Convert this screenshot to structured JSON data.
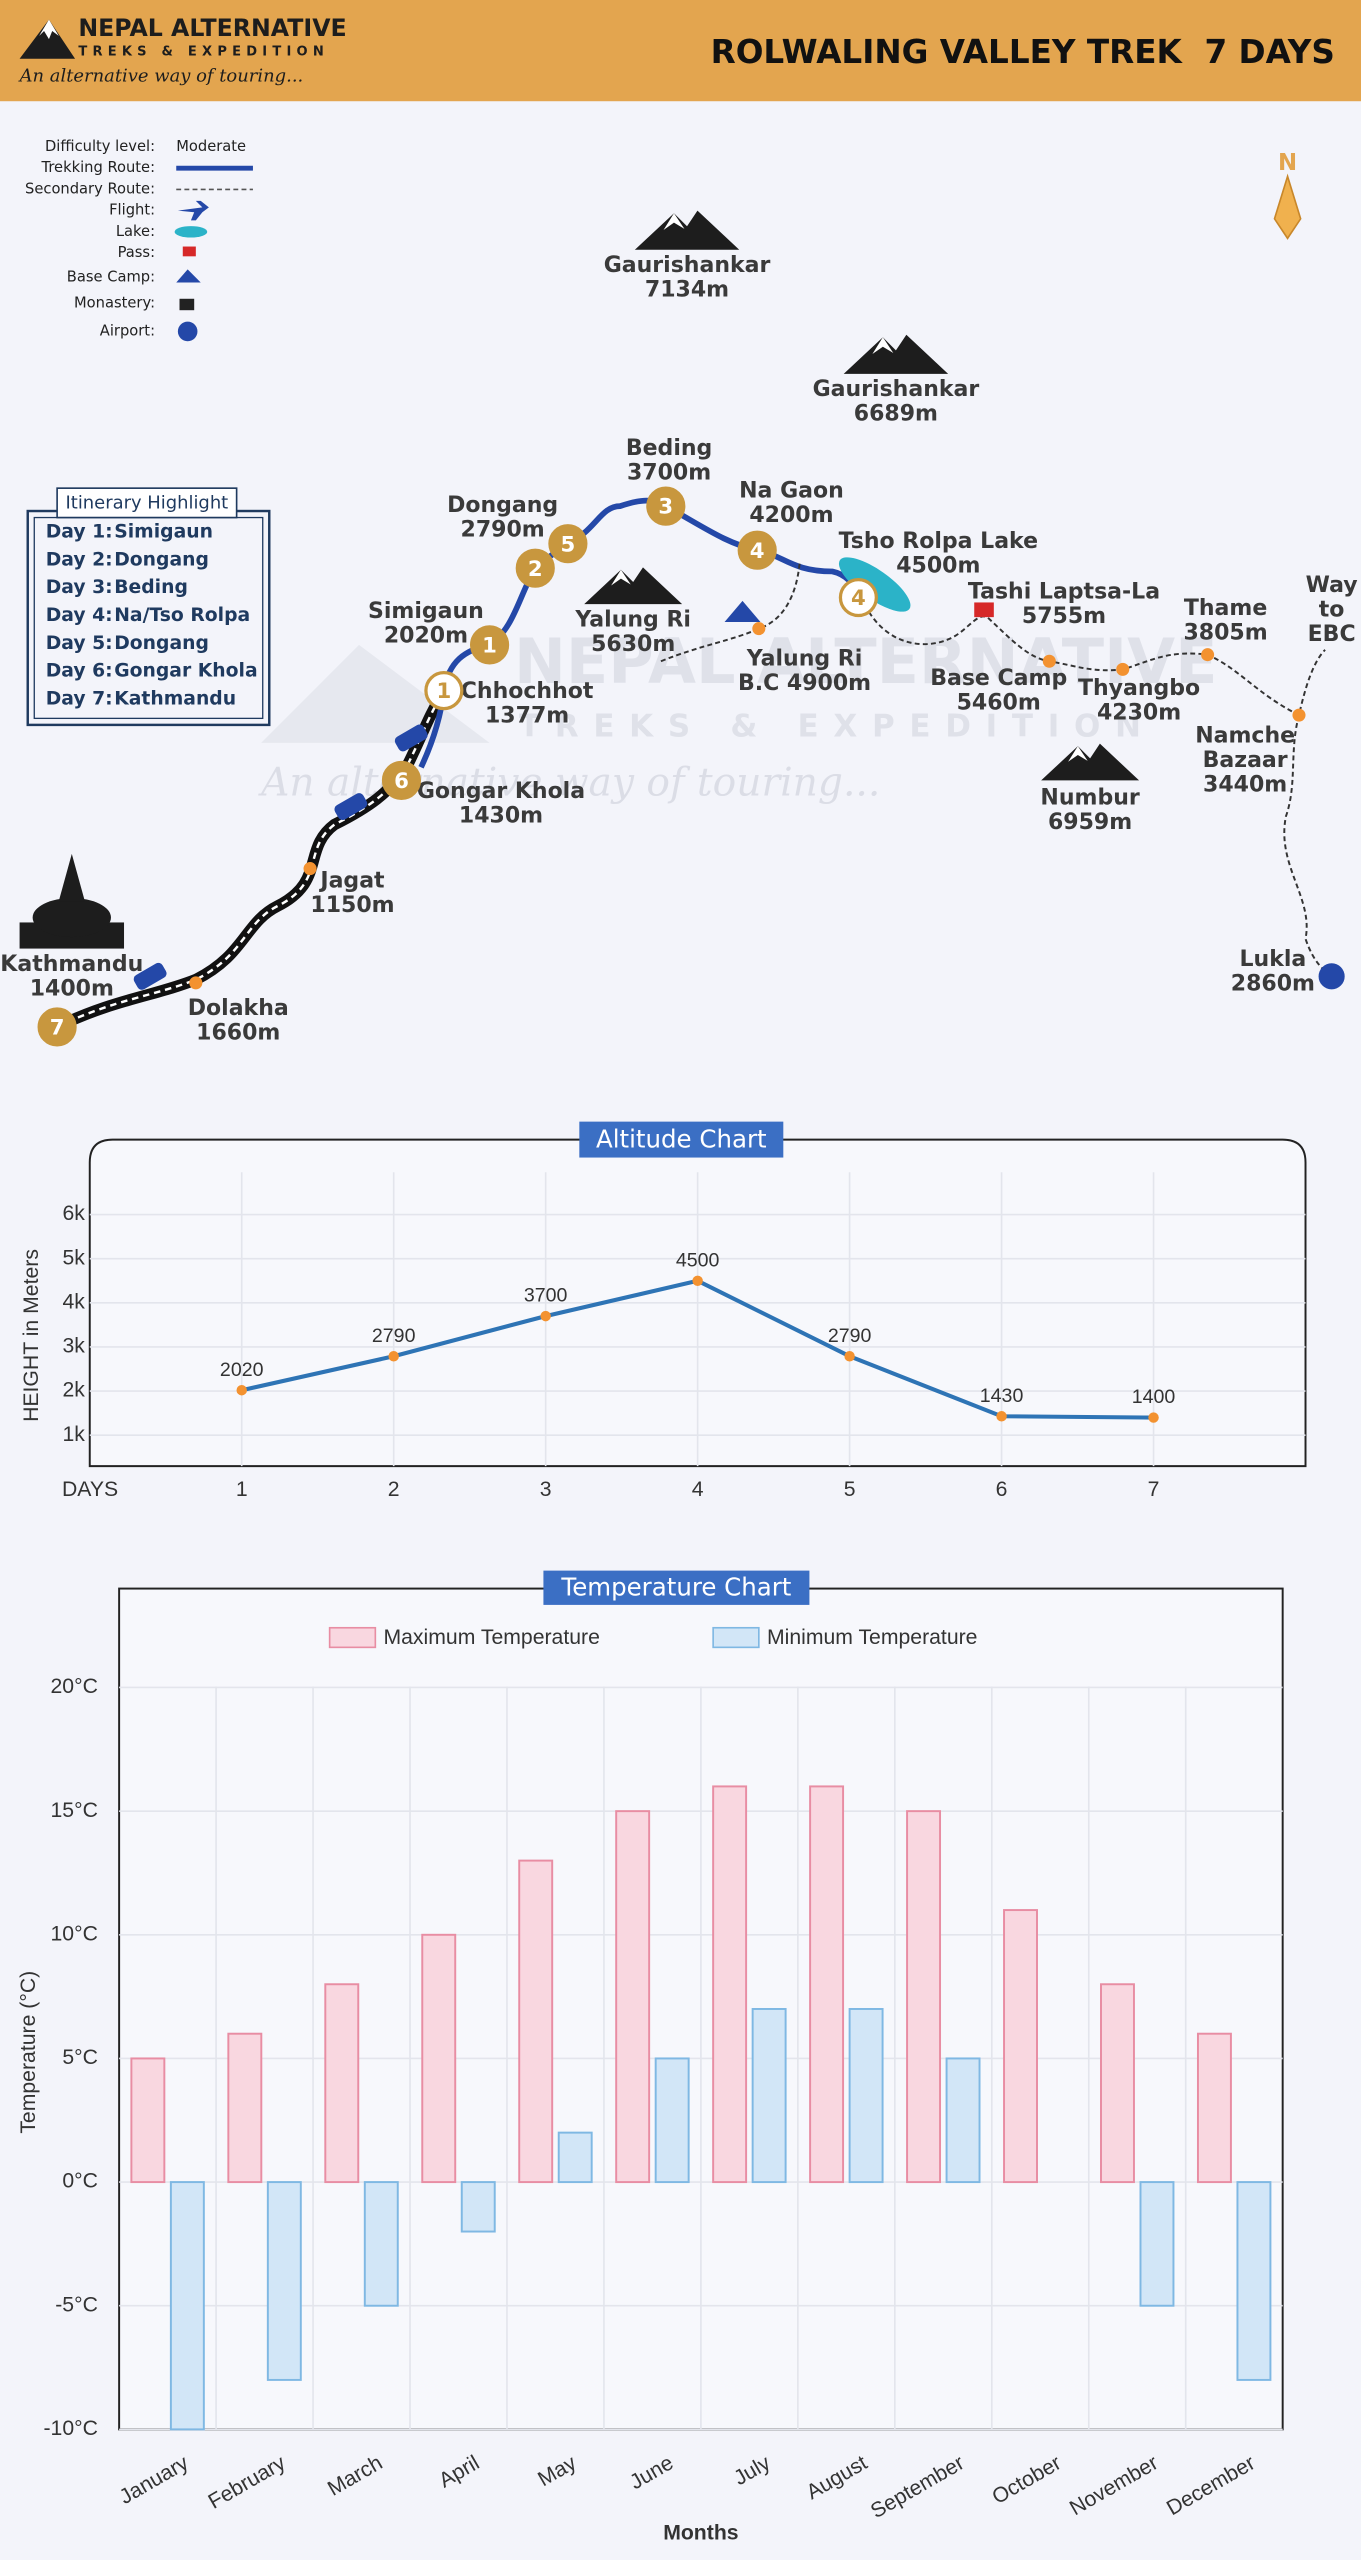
{
  "header": {
    "brand": "NEPAL ALTERNATIVE",
    "brand_sub": "TREKS & EXPEDITION",
    "tagline": "An alternative way of touring...",
    "title": "ROLWALING VALLEY TREK  7 DAYS"
  },
  "compass": "N",
  "legend": {
    "items": [
      {
        "label": "Difficulty level:",
        "value": "Moderate"
      },
      {
        "label": "Trekking Route:"
      },
      {
        "label": "Secondary Route:"
      },
      {
        "label": "Flight:"
      },
      {
        "label": "Lake:"
      },
      {
        "label": "Pass:"
      },
      {
        "label": "Base Camp:"
      },
      {
        "label": "Monastery:"
      },
      {
        "label": "Airport:"
      }
    ]
  },
  "map": {
    "labels": [
      {
        "lines": [
          "Gaurishankar",
          "7134m"
        ]
      },
      {
        "lines": [
          "Gaurishankar",
          "6689m"
        ]
      },
      {
        "lines": [
          "Beding",
          "3700m"
        ]
      },
      {
        "lines": [
          "Na Gaon",
          "4200m"
        ]
      },
      {
        "lines": [
          "Dongang",
          "2790m"
        ]
      },
      {
        "lines": [
          "Tsho Rolpa Lake",
          "4500m"
        ]
      },
      {
        "lines": [
          "Tashi Laptsa-La",
          "5755m"
        ]
      },
      {
        "lines": [
          "Thame",
          "3805m"
        ]
      },
      {
        "lines": [
          "Way",
          "to",
          "EBC"
        ]
      },
      {
        "lines": [
          "Simigaun",
          "2020m"
        ]
      },
      {
        "lines": [
          "Yalung Ri",
          "5630m"
        ]
      },
      {
        "lines": [
          "Yalung Ri",
          "B.C 4900m"
        ]
      },
      {
        "lines": [
          "Chhochhot",
          "1377m"
        ]
      },
      {
        "lines": [
          "Base Camp",
          "5460m"
        ]
      },
      {
        "lines": [
          "Thyangbo",
          "4230m"
        ]
      },
      {
        "lines": [
          "Namche",
          "Bazaar",
          "3440m"
        ]
      },
      {
        "lines": [
          "Gongar Khola",
          "1430m"
        ]
      },
      {
        "lines": [
          "Numbur",
          "6959m"
        ]
      },
      {
        "lines": [
          "Jagat",
          "1150m"
        ]
      },
      {
        "lines": [
          "Kathmandu",
          "1400m"
        ]
      },
      {
        "lines": [
          "Dolakha",
          "1660m"
        ]
      },
      {
        "lines": [
          "Lukla",
          "2860m"
        ]
      }
    ],
    "markers": [
      "1",
      "2",
      "5",
      "3",
      "4",
      "4",
      "1",
      "6",
      "7"
    ]
  },
  "itinerary": {
    "title": "Itinerary Highlight",
    "rows": [
      [
        "Day 1:",
        "Simigaun"
      ],
      [
        "Day 2:",
        "Dongang"
      ],
      [
        "Day 3:",
        "Beding"
      ],
      [
        "Day 4:",
        "Na/Tso Rolpa"
      ],
      [
        "Day 5:",
        "Dongang"
      ],
      [
        "Day 6:",
        "Gongar Khola"
      ],
      [
        "Day 7:",
        "Kathmandu"
      ]
    ]
  },
  "chart_data": [
    {
      "type": "line",
      "title": "Altitude Chart",
      "y_label": "HEIGHT in Meters",
      "x_label": "DAYS",
      "x": [
        1,
        2,
        3,
        4,
        5,
        6,
        7
      ],
      "values": [
        2020,
        2790,
        3700,
        4500,
        2790,
        1430,
        1400
      ],
      "color": "#2e74b5",
      "marker_color": "#f39230",
      "xlim": [
        0,
        8
      ],
      "xticks": [
        1,
        2,
        3,
        4,
        5,
        6,
        7
      ],
      "ylim": [
        300,
        7700
      ],
      "yticks": [
        {
          "value": 1000,
          "label": "1k"
        },
        {
          "value": 2000,
          "label": "2k"
        },
        {
          "value": 3000,
          "label": "3k"
        },
        {
          "value": 4000,
          "label": "4k"
        },
        {
          "value": 5000,
          "label": "5k"
        },
        {
          "value": 6000,
          "label": "6k"
        }
      ],
      "grid": true
    },
    {
      "type": "bar",
      "title": "Temperature Chart",
      "y_label": "Temperature (°C)",
      "x_label": "Months",
      "categories": [
        "January",
        "February",
        "March",
        "April",
        "May",
        "June",
        "July",
        "August",
        "September",
        "October",
        "November",
        "December"
      ],
      "series": [
        {
          "name": "Maximum Temperature",
          "color": "#f9d7e0",
          "border_color": "#e88da3",
          "values": [
            5,
            6,
            8,
            10,
            13,
            15,
            16,
            16,
            15,
            11,
            8,
            6
          ]
        },
        {
          "name": "Minimum Temperature",
          "color": "#d2e6f7",
          "border_color": "#7fb8e3",
          "values": [
            -10,
            -8,
            -5,
            -2,
            2,
            5,
            7,
            7,
            5,
            0,
            -5,
            -8
          ]
        }
      ],
      "ylim": [
        -10,
        24
      ],
      "yticks": [
        {
          "value": -10,
          "label": "-10°C"
        },
        {
          "value": -5,
          "label": "-5°C"
        },
        {
          "value": 0,
          "label": "0°C"
        },
        {
          "value": 5,
          "label": "5°C"
        },
        {
          "value": 10,
          "label": "10°C"
        },
        {
          "value": 15,
          "label": "15°C"
        },
        {
          "value": 20,
          "label": "20°C"
        }
      ],
      "grid": true,
      "legend": "top"
    }
  ]
}
